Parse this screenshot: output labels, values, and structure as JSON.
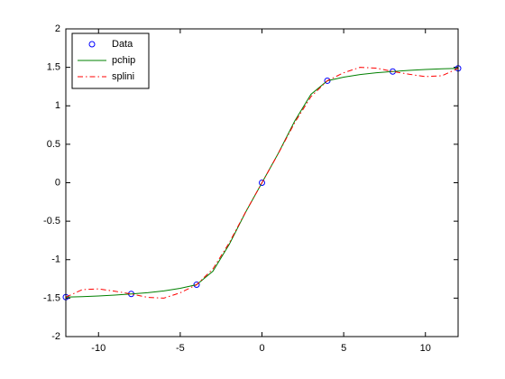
{
  "chart_data": {
    "type": "line",
    "xlim": [
      -12,
      12
    ],
    "xticks": [
      -10,
      -5,
      0,
      5,
      10
    ],
    "ylim": [
      -2,
      2
    ],
    "yticks": [
      -2,
      -1.5,
      -1,
      -0.5,
      0,
      0.5,
      1,
      1.5,
      2
    ],
    "legend": "upper-left",
    "series": [
      {
        "name": "Data",
        "color": "#0000ff",
        "style": "marker",
        "x": [
          -12,
          -8,
          -4,
          0,
          4,
          8,
          12
        ],
        "values": [
          -1.487,
          -1.446,
          -1.326,
          0,
          1.326,
          1.446,
          1.487
        ]
      },
      {
        "name": "pchip",
        "color": "#008000",
        "style": "solid",
        "x": [
          -12,
          -11,
          -10,
          -9,
          -8,
          -7,
          -6,
          -5,
          -4,
          -3,
          -2,
          -1,
          0,
          1,
          2,
          3,
          4,
          5,
          6,
          7,
          8,
          9,
          10,
          11,
          12
        ],
        "values": [
          -1.487,
          -1.481,
          -1.472,
          -1.46,
          -1.446,
          -1.429,
          -1.406,
          -1.373,
          -1.326,
          -1.15,
          -0.801,
          -0.383,
          0,
          0.383,
          0.801,
          1.15,
          1.326,
          1.373,
          1.406,
          1.429,
          1.446,
          1.46,
          1.472,
          1.481,
          1.487
        ]
      },
      {
        "name": "splini",
        "color": "#ff0000",
        "style": "dashdot",
        "x": [
          -12,
          -11,
          -10,
          -9,
          -8,
          -7,
          -6,
          -5,
          -4,
          -3,
          -2,
          -1,
          0,
          1,
          2,
          3,
          4,
          5,
          6,
          7,
          8,
          9,
          10,
          11,
          12
        ],
        "values": [
          -1.487,
          -1.39,
          -1.38,
          -1.41,
          -1.446,
          -1.49,
          -1.5,
          -1.43,
          -1.326,
          -1.12,
          -0.78,
          -0.38,
          0,
          0.38,
          0.78,
          1.12,
          1.326,
          1.43,
          1.5,
          1.49,
          1.446,
          1.41,
          1.38,
          1.39,
          1.487
        ]
      }
    ]
  }
}
